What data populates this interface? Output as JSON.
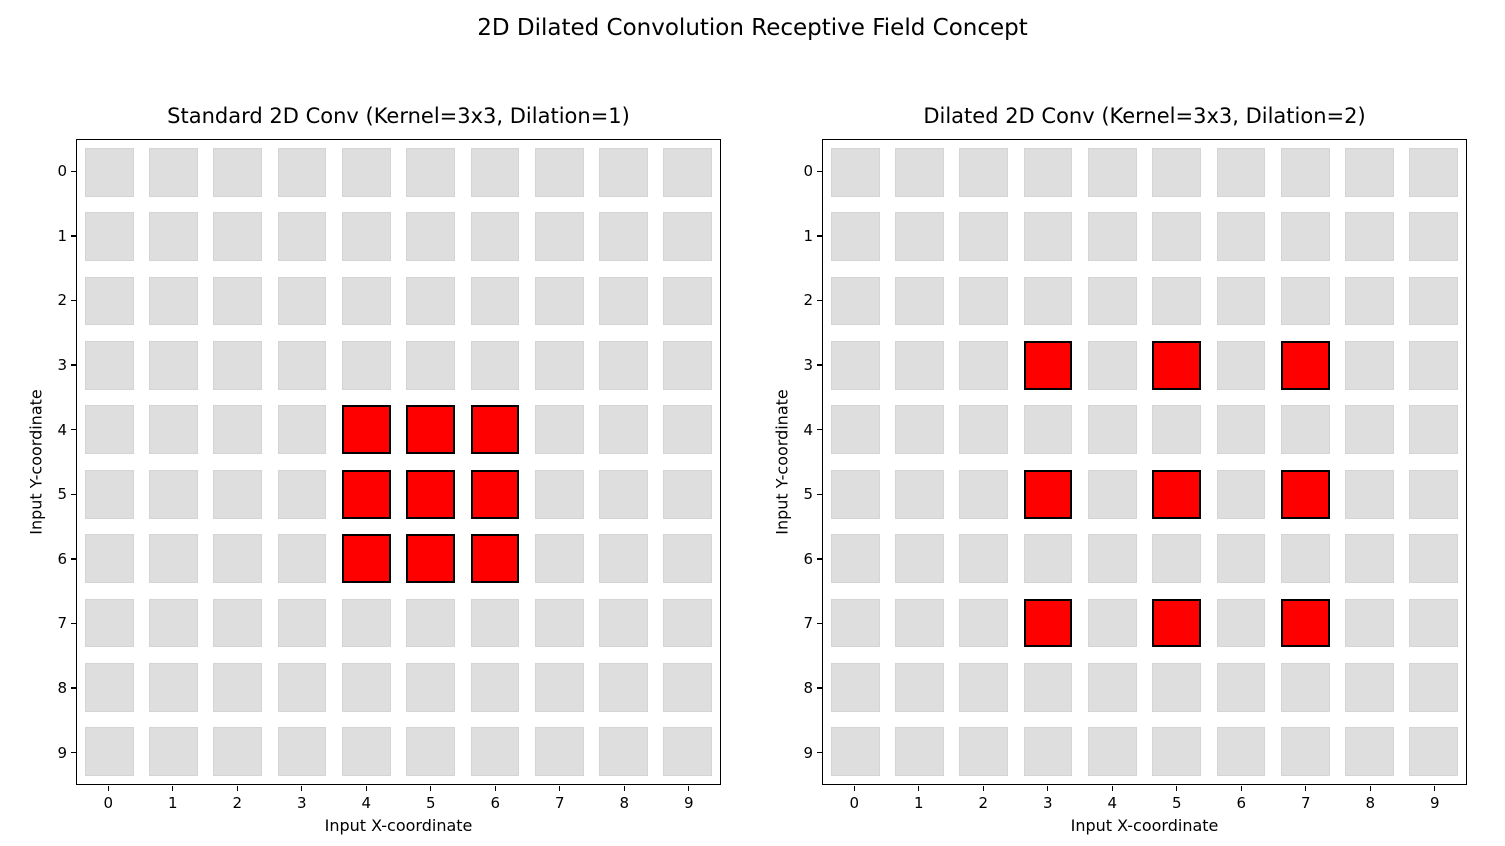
{
  "figure": {
    "title": "2D Dilated Convolution Receptive Field Concept"
  },
  "colors": {
    "background": "#ffffff",
    "spine": "#000000",
    "inactive_cell": "#dedede",
    "inactive_cell_edge": "#d4d4d4",
    "active_cell": "#ff0000",
    "active_cell_edge": "#000000"
  },
  "chart_data": [
    {
      "type": "heatmap",
      "title": "Standard 2D Conv (Kernel=3x3, Dilation=1)",
      "xlabel": "Input X-coordinate",
      "ylabel": "Input Y-coordinate",
      "kernel": "3x3",
      "dilation": 1,
      "grid_size": [
        10,
        10
      ],
      "x_ticks": [
        "0",
        "1",
        "2",
        "3",
        "4",
        "5",
        "6",
        "7",
        "8",
        "9"
      ],
      "y_ticks": [
        "0",
        "1",
        "2",
        "3",
        "4",
        "5",
        "6",
        "7",
        "8",
        "9"
      ],
      "y_axis_inverted": true,
      "grid_lines": false,
      "active_cells": [
        [
          4,
          4
        ],
        [
          5,
          4
        ],
        [
          6,
          4
        ],
        [
          4,
          5
        ],
        [
          5,
          5
        ],
        [
          6,
          5
        ],
        [
          4,
          6
        ],
        [
          5,
          6
        ],
        [
          6,
          6
        ]
      ]
    },
    {
      "type": "heatmap",
      "title": "Dilated 2D Conv (Kernel=3x3, Dilation=2)",
      "xlabel": "Input X-coordinate",
      "ylabel": "Input Y-coordinate",
      "kernel": "3x3",
      "dilation": 2,
      "grid_size": [
        10,
        10
      ],
      "x_ticks": [
        "0",
        "1",
        "2",
        "3",
        "4",
        "5",
        "6",
        "7",
        "8",
        "9"
      ],
      "y_ticks": [
        "0",
        "1",
        "2",
        "3",
        "4",
        "5",
        "6",
        "7",
        "8",
        "9"
      ],
      "y_axis_inverted": true,
      "grid_lines": false,
      "active_cells": [
        [
          3,
          3
        ],
        [
          5,
          3
        ],
        [
          7,
          3
        ],
        [
          3,
          5
        ],
        [
          5,
          5
        ],
        [
          7,
          5
        ],
        [
          3,
          7
        ],
        [
          5,
          7
        ],
        [
          7,
          7
        ]
      ]
    }
  ]
}
